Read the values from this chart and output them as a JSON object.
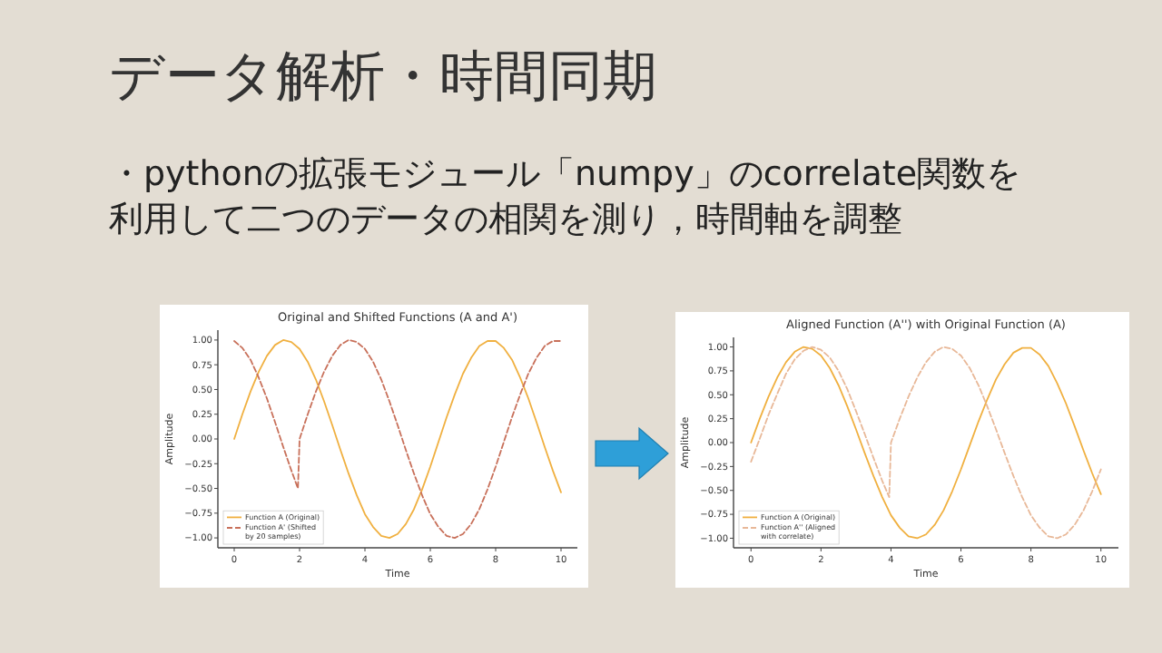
{
  "chart_data": [
    {
      "type": "other",
      "title": "データ解析・時間同期",
      "annotations": [
        "・pythonの拡張モジュール「numpy」のcorrelate関数を利用して二つのデータの相関を測り，時間軸を調整"
      ]
    },
    {
      "type": "line",
      "title": "Original and Shifted Functions (A and A')",
      "xlabel": "Time",
      "ylabel": "Amplitude",
      "xlim": [
        -0.5,
        10.5
      ],
      "ylim": [
        -1.1,
        1.1
      ],
      "xticks": [
        0,
        2,
        4,
        6,
        8,
        10
      ],
      "yticks": [
        {
          "value": -1,
          "label": "−1.00"
        },
        {
          "value": -0.75,
          "label": "−0.75"
        },
        {
          "value": -0.5,
          "label": "−0.50"
        },
        {
          "value": -0.25,
          "label": "−0.25"
        },
        {
          "value": 0,
          "label": "0.00"
        },
        {
          "value": 0.25,
          "label": "0.25"
        },
        {
          "value": 0.5,
          "label": "0.50"
        },
        {
          "value": 0.75,
          "label": "0.75"
        },
        {
          "value": 1,
          "label": "1.00"
        }
      ],
      "legend": "bottom left",
      "grid": false,
      "marker": "none",
      "series": [
        {
          "name": "Function A (Original)",
          "color": "#f0b040",
          "line_style": "solid",
          "x": [
            0,
            0.25,
            0.5,
            0.75,
            1,
            1.25,
            1.5,
            1.75,
            2,
            2.25,
            2.5,
            2.75,
            3,
            3.25,
            3.5,
            3.75,
            4,
            4.25,
            4.5,
            4.75,
            5,
            5.25,
            5.5,
            5.75,
            6,
            6.25,
            6.5,
            6.75,
            7,
            7.25,
            7.5,
            7.75,
            8,
            8.25,
            8.5,
            8.75,
            9,
            9.25,
            9.5,
            9.75,
            10
          ],
          "values": [
            0,
            0.25,
            0.48,
            0.68,
            0.84,
            0.95,
            1.0,
            0.98,
            0.91,
            0.78,
            0.6,
            0.38,
            0.14,
            -0.11,
            -0.35,
            -0.57,
            -0.76,
            -0.89,
            -0.98,
            -1.0,
            -0.96,
            -0.86,
            -0.71,
            -0.51,
            -0.28,
            -0.03,
            0.22,
            0.45,
            0.66,
            0.82,
            0.94,
            0.99,
            0.99,
            0.92,
            0.8,
            0.62,
            0.41,
            0.17,
            -0.08,
            -0.32,
            -0.54
          ]
        },
        {
          "name": "Function A' (Shifted by 20 samples)",
          "color": "#c8705a",
          "line_style": "dashed",
          "x": [
            0,
            0.25,
            0.5,
            0.75,
            1,
            1.25,
            1.5,
            1.75,
            1.95,
            2,
            2.25,
            2.5,
            2.75,
            3,
            3.25,
            3.5,
            3.75,
            4,
            4.25,
            4.5,
            4.75,
            5,
            5.25,
            5.5,
            5.75,
            6,
            6.25,
            6.5,
            6.75,
            7,
            7.25,
            7.5,
            7.75,
            8,
            8.25,
            8.5,
            8.75,
            9,
            9.25,
            9.5,
            9.75,
            10
          ],
          "values": [
            0.99,
            0.92,
            0.8,
            0.62,
            0.41,
            0.17,
            -0.08,
            -0.32,
            -0.5,
            0,
            0.25,
            0.48,
            0.68,
            0.84,
            0.95,
            1.0,
            0.98,
            0.91,
            0.78,
            0.6,
            0.38,
            0.14,
            -0.11,
            -0.35,
            -0.57,
            -0.76,
            -0.89,
            -0.98,
            -1.0,
            -0.96,
            -0.86,
            -0.71,
            -0.51,
            -0.28,
            -0.03,
            0.22,
            0.45,
            0.66,
            0.82,
            0.94,
            0.99,
            0.99
          ]
        }
      ]
    },
    {
      "type": "line",
      "title": "Aligned Function (A'') with Original Function (A)",
      "xlabel": "Time",
      "ylabel": "Amplitude",
      "xlim": [
        -0.5,
        10.5
      ],
      "ylim": [
        -1.1,
        1.1
      ],
      "xticks": [
        0,
        2,
        4,
        6,
        8,
        10
      ],
      "yticks": [
        {
          "value": -1,
          "label": "−1.00"
        },
        {
          "value": -0.75,
          "label": "−0.75"
        },
        {
          "value": -0.5,
          "label": "−0.50"
        },
        {
          "value": -0.25,
          "label": "−0.25"
        },
        {
          "value": 0,
          "label": "0.00"
        },
        {
          "value": 0.25,
          "label": "0.25"
        },
        {
          "value": 0.5,
          "label": "0.50"
        },
        {
          "value": 0.75,
          "label": "0.75"
        },
        {
          "value": 1,
          "label": "1.00"
        }
      ],
      "legend": "bottom left",
      "grid": false,
      "marker": "none",
      "series": [
        {
          "name": "Function A (Original)",
          "color": "#f0b040",
          "line_style": "solid",
          "x": [
            0,
            0.25,
            0.5,
            0.75,
            1,
            1.25,
            1.5,
            1.75,
            2,
            2.25,
            2.5,
            2.75,
            3,
            3.25,
            3.5,
            3.75,
            4,
            4.25,
            4.5,
            4.75,
            5,
            5.25,
            5.5,
            5.75,
            6,
            6.25,
            6.5,
            6.75,
            7,
            7.25,
            7.5,
            7.75,
            8,
            8.25,
            8.5,
            8.75,
            9,
            9.25,
            9.5,
            9.75,
            10
          ],
          "values": [
            0,
            0.25,
            0.48,
            0.68,
            0.84,
            0.95,
            1.0,
            0.98,
            0.91,
            0.78,
            0.6,
            0.38,
            0.14,
            -0.11,
            -0.35,
            -0.57,
            -0.76,
            -0.89,
            -0.98,
            -1.0,
            -0.96,
            -0.86,
            -0.71,
            -0.51,
            -0.28,
            -0.03,
            0.22,
            0.45,
            0.66,
            0.82,
            0.94,
            0.99,
            0.99,
            0.92,
            0.8,
            0.62,
            0.41,
            0.17,
            -0.08,
            -0.32,
            -0.54
          ]
        },
        {
          "name": "Function A'' (Aligned with correlate)",
          "color": "#e8b898",
          "line_style": "dashed",
          "x": [
            0,
            0.25,
            0.5,
            0.75,
            1,
            1.25,
            1.5,
            1.75,
            2,
            2.25,
            2.5,
            2.75,
            3,
            3.25,
            3.5,
            3.75,
            3.95,
            4,
            4.25,
            4.5,
            4.75,
            5,
            5.25,
            5.5,
            5.75,
            6,
            6.25,
            6.5,
            6.75,
            7,
            7.25,
            7.5,
            7.75,
            8,
            8.25,
            8.5,
            8.75,
            9,
            9.25,
            9.5,
            9.75,
            10
          ],
          "values": [
            -0.2,
            0.04,
            0.29,
            0.51,
            0.72,
            0.87,
            0.96,
            1.0,
            0.97,
            0.89,
            0.75,
            0.56,
            0.33,
            0.09,
            -0.16,
            -0.4,
            -0.57,
            0,
            0.25,
            0.48,
            0.68,
            0.84,
            0.95,
            1.0,
            0.98,
            0.91,
            0.78,
            0.6,
            0.38,
            0.14,
            -0.11,
            -0.35,
            -0.57,
            -0.76,
            -0.89,
            -0.98,
            -1.0,
            -0.96,
            -0.86,
            -0.71,
            -0.51,
            -0.28
          ]
        }
      ]
    }
  ]
}
